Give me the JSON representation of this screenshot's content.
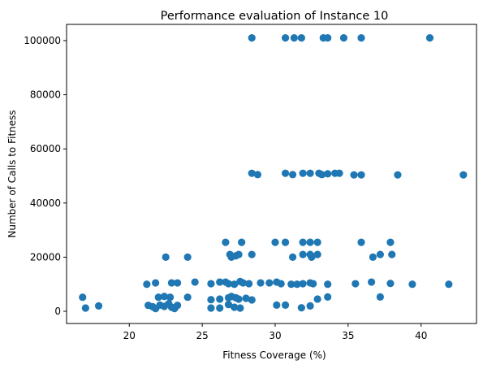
{
  "chart_data": {
    "type": "scatter",
    "title": "Performance evaluation of Instance 10",
    "xlabel": "Fitness Coverage (%)",
    "ylabel": "Number of Calls to Fitness",
    "xlim": [
      15.7,
      43.8
    ],
    "ylim": [
      -4500,
      106000
    ],
    "xticks": [
      20,
      25,
      30,
      35,
      40
    ],
    "yticks": [
      0,
      20000,
      40000,
      60000,
      80000,
      100000
    ],
    "xtick_labels": [
      "20",
      "25",
      "30",
      "35",
      "40"
    ],
    "ytick_labels": [
      "0",
      "20000",
      "40000",
      "60000",
      "80000",
      "100000"
    ],
    "grid": false,
    "legend": "none",
    "marker_color": "#1f77b4",
    "points": [
      [
        28.4,
        101000
      ],
      [
        30.7,
        101000
      ],
      [
        31.3,
        101000
      ],
      [
        31.8,
        101000
      ],
      [
        33.3,
        101000
      ],
      [
        33.6,
        101000
      ],
      [
        34.7,
        101000
      ],
      [
        35.9,
        101000
      ],
      [
        40.6,
        101000
      ],
      [
        28.4,
        51000
      ],
      [
        28.8,
        50500
      ],
      [
        30.7,
        51000
      ],
      [
        31.2,
        50500
      ],
      [
        31.9,
        51000
      ],
      [
        32.4,
        51000
      ],
      [
        33.0,
        51000
      ],
      [
        33.2,
        50500
      ],
      [
        33.6,
        50800
      ],
      [
        34.1,
        51000
      ],
      [
        34.4,
        51000
      ],
      [
        35.4,
        50400
      ],
      [
        35.9,
        50400
      ],
      [
        38.4,
        50400
      ],
      [
        42.9,
        50400
      ],
      [
        26.6,
        25500
      ],
      [
        27.7,
        25500
      ],
      [
        30.0,
        25500
      ],
      [
        30.7,
        25500
      ],
      [
        31.9,
        25500
      ],
      [
        32.4,
        25500
      ],
      [
        32.9,
        25500
      ],
      [
        35.9,
        25500
      ],
      [
        37.9,
        25500
      ],
      [
        22.5,
        20000
      ],
      [
        24.0,
        20000
      ],
      [
        26.9,
        21000
      ],
      [
        27.3,
        20500
      ],
      [
        27.0,
        20000
      ],
      [
        27.5,
        21000
      ],
      [
        28.4,
        21000
      ],
      [
        31.2,
        20000
      ],
      [
        31.9,
        21000
      ],
      [
        32.4,
        21000
      ],
      [
        32.5,
        20000
      ],
      [
        32.9,
        21000
      ],
      [
        36.7,
        20000
      ],
      [
        37.2,
        21000
      ],
      [
        38.0,
        21000
      ],
      [
        21.2,
        10000
      ],
      [
        21.8,
        10500
      ],
      [
        22.9,
        10500
      ],
      [
        23.3,
        10500
      ],
      [
        24.5,
        10800
      ],
      [
        25.6,
        10200
      ],
      [
        26.2,
        10800
      ],
      [
        26.6,
        10800
      ],
      [
        26.8,
        10200
      ],
      [
        27.2,
        10000
      ],
      [
        27.6,
        11000
      ],
      [
        27.8,
        10500
      ],
      [
        28.2,
        10200
      ],
      [
        29.0,
        10500
      ],
      [
        29.6,
        10500
      ],
      [
        30.1,
        10800
      ],
      [
        30.4,
        10200
      ],
      [
        31.1,
        10000
      ],
      [
        31.5,
        10000
      ],
      [
        31.9,
        10200
      ],
      [
        32.4,
        10500
      ],
      [
        32.6,
        10200
      ],
      [
        33.6,
        10000
      ],
      [
        35.5,
        10200
      ],
      [
        36.6,
        10800
      ],
      [
        37.9,
        10300
      ],
      [
        39.4,
        10000
      ],
      [
        41.9,
        10000
      ],
      [
        16.8,
        5200
      ],
      [
        22.0,
        5200
      ],
      [
        22.4,
        5500
      ],
      [
        22.8,
        5200
      ],
      [
        24.0,
        5200
      ],
      [
        25.6,
        4300
      ],
      [
        26.2,
        4500
      ],
      [
        26.8,
        5000
      ],
      [
        27.0,
        5500
      ],
      [
        27.3,
        5000
      ],
      [
        27.5,
        4500
      ],
      [
        28.0,
        4800
      ],
      [
        28.4,
        4200
      ],
      [
        32.9,
        4500
      ],
      [
        33.6,
        5300
      ],
      [
        37.2,
        5300
      ],
      [
        17.0,
        1200
      ],
      [
        17.9,
        2000
      ],
      [
        21.3,
        2200
      ],
      [
        21.6,
        1700
      ],
      [
        21.8,
        1000
      ],
      [
        22.1,
        2300
      ],
      [
        22.4,
        1800
      ],
      [
        22.7,
        2800
      ],
      [
        22.9,
        1500
      ],
      [
        23.1,
        1000
      ],
      [
        23.3,
        2200
      ],
      [
        25.6,
        1200
      ],
      [
        26.2,
        1200
      ],
      [
        26.8,
        2500
      ],
      [
        27.2,
        1500
      ],
      [
        27.6,
        1200
      ],
      [
        30.1,
        2300
      ],
      [
        30.7,
        2300
      ],
      [
        31.8,
        1300
      ],
      [
        32.4,
        2000
      ]
    ]
  }
}
